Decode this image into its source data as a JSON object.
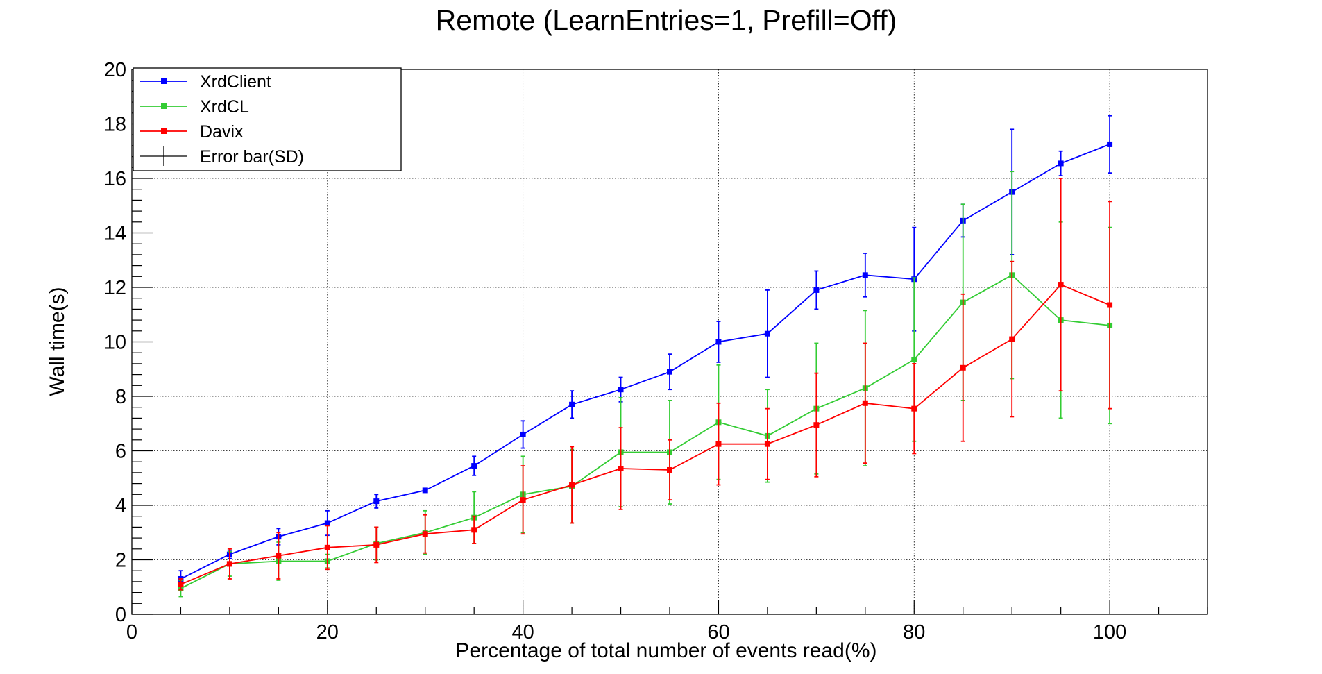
{
  "chart_data": {
    "type": "line",
    "title": "Remote (LearnEntries=1, Prefill=Off)",
    "xlabel": "Percentage of total number of events read(%)",
    "ylabel": "Wall time(s)",
    "xlim": [
      0,
      110
    ],
    "ylim": [
      0,
      20
    ],
    "x_ticks": [
      0,
      20,
      40,
      60,
      80,
      100
    ],
    "y_ticks": [
      0,
      2,
      4,
      6,
      8,
      10,
      12,
      14,
      16,
      18,
      20
    ],
    "grid": true,
    "grid_style": "dotted",
    "legend_position": "top-left",
    "x": [
      5,
      10,
      15,
      20,
      25,
      30,
      35,
      40,
      45,
      50,
      55,
      60,
      65,
      70,
      75,
      80,
      85,
      90,
      95,
      100
    ],
    "series": [
      {
        "name": "XrdClient",
        "color": "#0000ff",
        "values": [
          1.3,
          2.2,
          2.85,
          3.35,
          4.15,
          4.55,
          5.45,
          6.6,
          7.7,
          8.25,
          8.9,
          10.0,
          10.3,
          11.9,
          12.45,
          12.3,
          14.45,
          15.5,
          16.55,
          17.25
        ],
        "errors": [
          0.3,
          0.15,
          0.3,
          0.45,
          0.25,
          0.05,
          0.35,
          0.5,
          0.5,
          0.45,
          0.65,
          0.75,
          1.6,
          0.7,
          0.8,
          1.9,
          0.6,
          2.3,
          0.45,
          1.05
        ]
      },
      {
        "name": "XrdCL",
        "color": "#33cc33",
        "values": [
          0.95,
          1.85,
          1.95,
          1.95,
          2.6,
          3.0,
          3.55,
          4.4,
          4.7,
          5.95,
          5.95,
          7.05,
          6.55,
          7.55,
          8.3,
          9.35,
          11.45,
          12.45,
          10.8,
          10.6
        ],
        "errors": [
          0.3,
          0.45,
          0.7,
          0.25,
          0.6,
          0.8,
          0.95,
          1.4,
          1.35,
          2.0,
          1.9,
          2.1,
          1.7,
          2.4,
          2.85,
          3.0,
          3.6,
          3.8,
          3.6,
          3.6
        ]
      },
      {
        "name": "Davix",
        "color": "#ff0000",
        "values": [
          1.1,
          1.85,
          2.15,
          2.45,
          2.55,
          2.95,
          3.1,
          4.2,
          4.75,
          5.35,
          5.3,
          6.25,
          6.25,
          6.95,
          7.75,
          7.55,
          9.05,
          10.1,
          12.1,
          11.35
        ],
        "errors": [
          0.2,
          0.55,
          0.85,
          0.8,
          0.65,
          0.7,
          0.5,
          1.25,
          1.4,
          1.5,
          1.1,
          1.5,
          1.3,
          1.9,
          2.2,
          1.65,
          2.7,
          2.85,
          3.9,
          3.8
        ]
      }
    ],
    "legend": [
      {
        "label": "XrdClient",
        "marker": "square",
        "color": "#0000ff"
      },
      {
        "label": "XrdCL",
        "marker": "square",
        "color": "#33cc33"
      },
      {
        "label": "Davix",
        "marker": "square",
        "color": "#ff0000"
      },
      {
        "label": "Error bar(SD)",
        "marker": "errorbar",
        "color": "#000000"
      }
    ]
  }
}
